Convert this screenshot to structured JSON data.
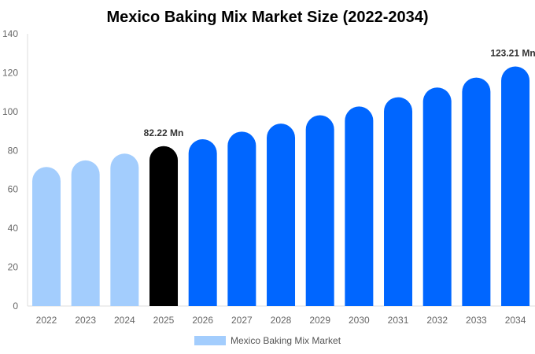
{
  "chart_data": {
    "type": "bar",
    "title": "Mexico Baking Mix Market Size (2022-2034)",
    "xlabel": "",
    "ylabel": "",
    "ylim": [
      0,
      140
    ],
    "yticks": [
      0,
      20,
      40,
      60,
      80,
      100,
      120,
      140
    ],
    "categories": [
      "2022",
      "2023",
      "2024",
      "2025",
      "2026",
      "2027",
      "2028",
      "2029",
      "2030",
      "2031",
      "2032",
      "2033",
      "2034"
    ],
    "series": [
      {
        "name": "Mexico Baking Mix Market",
        "values": [
          71.5,
          74.9,
          78.4,
          82.22,
          85.8,
          89.7,
          93.8,
          98.1,
          102.6,
          107.4,
          112.4,
          117.5,
          123.21
        ]
      }
    ],
    "bar_colors": [
      "#a3cdfd",
      "#a3cdfd",
      "#a3cdfd",
      "#000000",
      "#0066ff",
      "#0066ff",
      "#0066ff",
      "#0066ff",
      "#0066ff",
      "#0066ff",
      "#0066ff",
      "#0066ff",
      "#0066ff"
    ],
    "data_labels": [
      {
        "category": "2025",
        "text": "82.22 Mn"
      },
      {
        "category": "2034",
        "text": "123.21 Mn"
      }
    ],
    "legend": {
      "position": "bottom",
      "color": "#a3cdfd"
    },
    "grid": false
  }
}
